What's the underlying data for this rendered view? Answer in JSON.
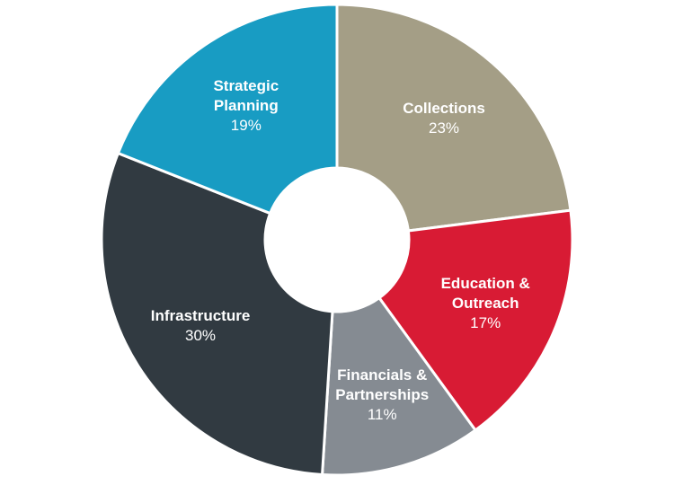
{
  "chart_data": {
    "type": "donut",
    "categories": [
      "Collections",
      "Education & Outreach",
      "Financials & Partnerships",
      "Infrastructure",
      "Strategic Planning"
    ],
    "values": [
      23,
      17,
      11,
      30,
      19
    ],
    "value_labels": [
      "23%",
      "17%",
      "11%",
      "30%",
      "19%"
    ],
    "colors": [
      "#a49e86",
      "#d81b34",
      "#858b92",
      "#313a41",
      "#189cc3"
    ]
  }
}
